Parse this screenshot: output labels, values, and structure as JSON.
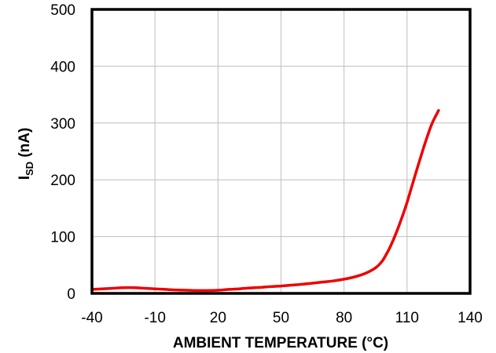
{
  "chart_data": {
    "type": "line",
    "title": "",
    "xlabel": "AMBIENT TEMPERATURE (°C)",
    "ylabel_main": "I",
    "ylabel_sub": "SD",
    "ylabel_rest": " (nA)",
    "xlim": [
      -40,
      140
    ],
    "ylim": [
      0,
      500
    ],
    "x_ticks": [
      -40,
      -10,
      20,
      50,
      80,
      110,
      140
    ],
    "y_ticks": [
      0,
      100,
      200,
      300,
      400,
      500
    ],
    "grid": true,
    "legend": "none",
    "series": [
      {
        "color": "#ee0000",
        "x": [
          -40,
          -35,
          -30,
          -25,
          -20,
          -15,
          -10,
          -5,
          0,
          5,
          10,
          15,
          20,
          25,
          30,
          35,
          40,
          45,
          50,
          55,
          60,
          65,
          70,
          75,
          80,
          85,
          90,
          95,
          98,
          100,
          102,
          105,
          108,
          110,
          112,
          115,
          118,
          120,
          122,
          125
        ],
        "y": [
          7,
          8,
          9,
          10,
          10,
          9,
          8,
          7,
          6,
          5.5,
          5,
          5,
          5.5,
          7,
          8,
          9.5,
          10.5,
          12,
          13,
          14.5,
          16,
          18,
          20,
          22,
          25,
          29,
          35,
          45,
          56,
          68,
          82,
          108,
          138,
          160,
          185,
          222,
          258,
          280,
          300,
          322
        ]
      }
    ]
  }
}
